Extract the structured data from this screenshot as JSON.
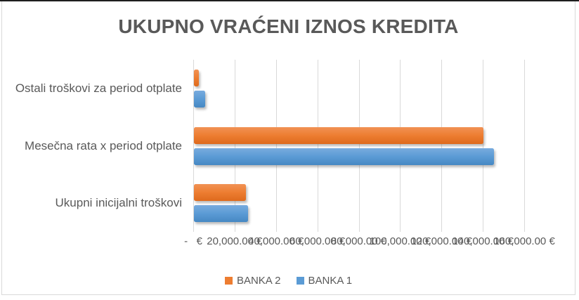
{
  "chart_data": {
    "type": "bar",
    "orientation": "horizontal",
    "title": "UKUPNO VRAĆENI IZNOS KREDITA",
    "categories": [
      "Ostali troškovi za period otplate",
      "Mesečna rata x period otplate",
      "Ukupni inicijalni troškovi"
    ],
    "series": [
      {
        "name": "BANKA 2",
        "color": "#ED7D31",
        "values": [
          2500,
          140000,
          25000
        ]
      },
      {
        "name": "BANKA 1",
        "color": "#5B9BD5",
        "values": [
          5300,
          145000,
          26000
        ]
      }
    ],
    "x_axis": {
      "min": 0,
      "max": 160000,
      "step": 20000,
      "unit": "€",
      "tick_labels": [
        "-   €",
        "20,000.00 €",
        "40,000.00 €",
        "60,000.00 €",
        "80,000.00 €",
        "100,000.00 €",
        "120,000.00 €",
        "140,000.00 €",
        "160,000.00 €"
      ]
    },
    "legend": {
      "position": "bottom"
    },
    "grid": true,
    "colors": {
      "text": "#595959",
      "gridline": "#D9D9D9",
      "border": "#D9D9D9"
    }
  }
}
